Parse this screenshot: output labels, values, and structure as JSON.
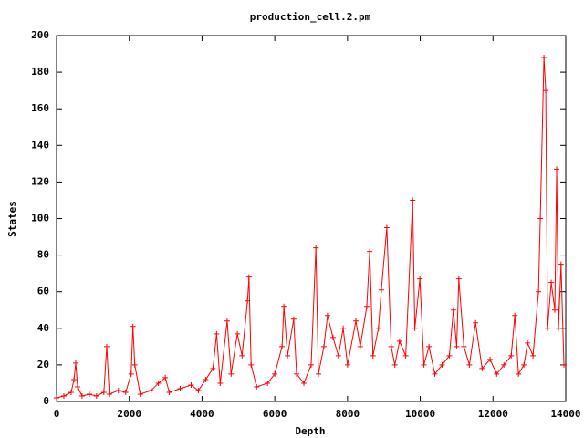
{
  "chart_data": {
    "type": "linespoints",
    "title": "production_cell.2.pm",
    "xlabel": "Depth",
    "ylabel": "States",
    "color": "#ff0000",
    "xlim": [
      0,
      14000
    ],
    "xticks": [
      0,
      2000,
      4000,
      6000,
      8000,
      10000,
      12000,
      14000
    ],
    "ylim": [
      0,
      200
    ],
    "yticks": [
      0,
      20,
      40,
      60,
      80,
      100,
      120,
      140,
      160,
      180,
      200
    ],
    "x": [
      0,
      200,
      400,
      480,
      527,
      580,
      700,
      900,
      1100,
      1300,
      1380,
      1450,
      1700,
      1900,
      2050,
      2100,
      2150,
      2300,
      2600,
      2800,
      2990,
      3100,
      3400,
      3700,
      3900,
      4100,
      4300,
      4400,
      4500,
      4690,
      4800,
      4970,
      5100,
      5250,
      5290,
      5350,
      5500,
      5800,
      6000,
      6200,
      6250,
      6350,
      6520,
      6600,
      6800,
      7000,
      7130,
      7200,
      7350,
      7450,
      7600,
      7750,
      7880,
      8000,
      8230,
      8350,
      8530,
      8610,
      8700,
      8850,
      8930,
      9080,
      9200,
      9300,
      9430,
      9600,
      9790,
      9850,
      9990,
      10100,
      10240,
      10400,
      10600,
      10800,
      10910,
      11000,
      11060,
      11200,
      11350,
      11520,
      11700,
      11920,
      12100,
      12300,
      12500,
      12600,
      12700,
      12850,
      12950,
      13100,
      13250,
      13300,
      13400,
      13450,
      13500,
      13600,
      13700,
      13750,
      13800,
      13870,
      13950
    ],
    "values": [
      2,
      3,
      5,
      12,
      21,
      8,
      3,
      4,
      3,
      5,
      30,
      4,
      6,
      5,
      15,
      41,
      20,
      4,
      6,
      10,
      13,
      5,
      7,
      9,
      6,
      12,
      18,
      37,
      10,
      44,
      15,
      37,
      25,
      55,
      68,
      20,
      8,
      10,
      15,
      30,
      52,
      25,
      45,
      15,
      10,
      20,
      84,
      15,
      30,
      47,
      35,
      25,
      40,
      20,
      44,
      30,
      52,
      82,
      25,
      40,
      61,
      95,
      30,
      20,
      33,
      25,
      110,
      40,
      67,
      20,
      30,
      15,
      20,
      25,
      50,
      30,
      67,
      30,
      20,
      43,
      18,
      23,
      15,
      20,
      25,
      47,
      15,
      20,
      32,
      25,
      60,
      100,
      188,
      170,
      40,
      65,
      50,
      127,
      40,
      75,
      20
    ]
  }
}
